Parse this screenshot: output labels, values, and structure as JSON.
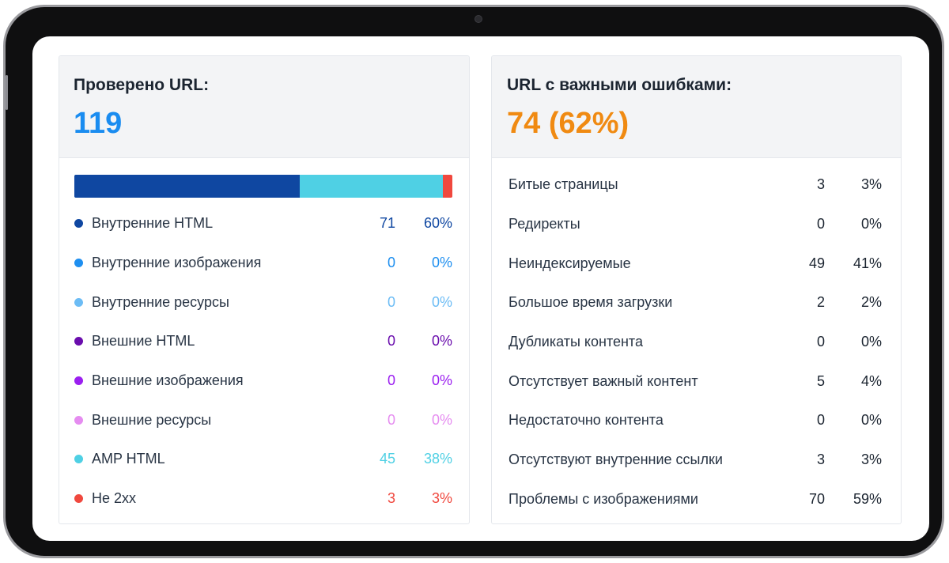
{
  "left_panel": {
    "title": "Проверено URL:",
    "value": "119",
    "value_color": "#1a8cf0",
    "bar_segments": [
      {
        "name": "Внутренние HTML",
        "fraction": 0.597,
        "color": "#0f47a1"
      },
      {
        "name": "AMP HTML",
        "fraction": 0.378,
        "color": "#4fd0e4"
      },
      {
        "name": "Не 2xx",
        "fraction": 0.025,
        "color": "#f0483e"
      }
    ],
    "rows": [
      {
        "label": "Внутренние HTML",
        "count": "71",
        "pct": "60%",
        "color": "#0f47a1"
      },
      {
        "label": "Внутренние изображения",
        "count": "0",
        "pct": "0%",
        "color": "#1e8ff0"
      },
      {
        "label": "Внутренние ресурсы",
        "count": "0",
        "pct": "0%",
        "color": "#6cbcf5"
      },
      {
        "label": "Внешние HTML",
        "count": "0",
        "pct": "0%",
        "color": "#6a0dad"
      },
      {
        "label": "Внешние изображения",
        "count": "0",
        "pct": "0%",
        "color": "#9b1ff0"
      },
      {
        "label": "Внешние ресурсы",
        "count": "0",
        "pct": "0%",
        "color": "#e58cf0"
      },
      {
        "label": "AMP HTML",
        "count": "45",
        "pct": "38%",
        "color": "#4fd0e4"
      },
      {
        "label": "Не 2xx",
        "count": "3",
        "pct": "3%",
        "color": "#f0483e"
      }
    ]
  },
  "right_panel": {
    "title": "URL с важными ошибками:",
    "value": "74 (62%)",
    "value_color": "#f08a12",
    "rows": [
      {
        "label": "Битые страницы",
        "count": "3",
        "pct": "3%"
      },
      {
        "label": "Редиректы",
        "count": "0",
        "pct": "0%"
      },
      {
        "label": "Неиндексируемые",
        "count": "49",
        "pct": "41%"
      },
      {
        "label": "Большое время загрузки",
        "count": "2",
        "pct": "2%"
      },
      {
        "label": "Дубликаты контента",
        "count": "0",
        "pct": "0%"
      },
      {
        "label": "Отсутствует важный контент",
        "count": "5",
        "pct": "4%"
      },
      {
        "label": "Недостаточно контента",
        "count": "0",
        "pct": "0%"
      },
      {
        "label": "Отсутствуют внутренние ссылки",
        "count": "3",
        "pct": "3%"
      },
      {
        "label": "Проблемы с изображениями",
        "count": "70",
        "pct": "59%"
      }
    ]
  }
}
